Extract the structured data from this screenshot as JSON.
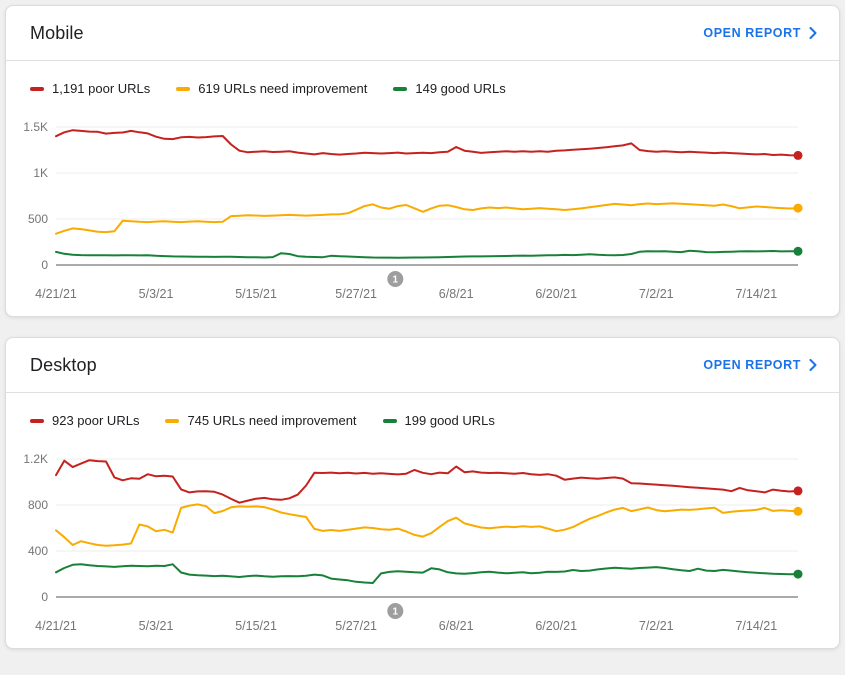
{
  "accent_color": "#1a73e8",
  "status_colors": {
    "poor": "#c5221f",
    "needs_improvement": "#f9ab00",
    "good": "#188038"
  },
  "cards": [
    {
      "id": "mobile",
      "title": "Mobile",
      "open_report_label": "OPEN REPORT",
      "legend": [
        {
          "label": "1,191 poor URLs",
          "color": "#c5221f"
        },
        {
          "label": "619 URLs need improvement",
          "color": "#f9ab00"
        },
        {
          "label": "149 good URLs",
          "color": "#188038"
        }
      ],
      "chart_data": {
        "type": "line",
        "start_date": "4/21/21",
        "y_max": 1500,
        "y_ticks": [
          {
            "value": 0,
            "label": "0"
          },
          {
            "value": 500,
            "label": "500"
          },
          {
            "value": 1000,
            "label": "1K"
          },
          {
            "value": 1500,
            "label": "1.5K"
          }
        ],
        "x_ticks": [
          {
            "index": 0,
            "label": "4/21/21"
          },
          {
            "index": 12,
            "label": "5/3/21"
          },
          {
            "index": 24,
            "label": "5/15/21"
          },
          {
            "index": 36,
            "label": "5/27/21"
          },
          {
            "index": 48,
            "label": "6/8/21"
          },
          {
            "index": 60,
            "label": "6/20/21"
          },
          {
            "index": 72,
            "label": "7/2/21"
          },
          {
            "index": 84,
            "label": "7/14/21"
          }
        ],
        "annotation": {
          "label": "1",
          "day_index": 40.7
        },
        "series": [
          {
            "name": "poor URLs",
            "color": "#c5221f",
            "current": 1191,
            "values": [
              1400,
              1442,
              1465,
              1458,
              1450,
              1448,
              1428,
              1436,
              1440,
              1458,
              1442,
              1430,
              1395,
              1372,
              1368,
              1388,
              1392,
              1386,
              1390,
              1398,
              1402,
              1310,
              1242,
              1225,
              1232,
              1236,
              1228,
              1232,
              1236,
              1222,
              1212,
              1202,
              1216,
              1206,
              1200,
              1206,
              1212,
              1220,
              1216,
              1212,
              1216,
              1222,
              1212,
              1216,
              1220,
              1216,
              1226,
              1232,
              1283,
              1242,
              1232,
              1218,
              1226,
              1232,
              1236,
              1232,
              1236,
              1232,
              1236,
              1232,
              1242,
              1246,
              1252,
              1258,
              1264,
              1272,
              1280,
              1290,
              1300,
              1322,
              1250,
              1238,
              1232,
              1236,
              1232,
              1226,
              1232,
              1226,
              1222,
              1216,
              1222,
              1216,
              1212,
              1206,
              1202,
              1206,
              1196,
              1200,
              1194,
              1191
            ]
          },
          {
            "name": "URLs need improvement",
            "color": "#f9ab00",
            "current": 619,
            "values": [
              340,
              372,
              398,
              390,
              376,
              362,
              358,
              366,
              482,
              476,
              470,
              466,
              472,
              476,
              470,
              466,
              472,
              476,
              470,
              466,
              470,
              532,
              536,
              540,
              538,
              534,
              537,
              541,
              545,
              541,
              537,
              541,
              545,
              550,
              552,
              562,
              600,
              640,
              660,
              625,
              612,
              640,
              652,
              616,
              578,
              615,
              645,
              650,
              630,
              605,
              598,
              615,
              625,
              618,
              625,
              615,
              605,
              612,
              618,
              612,
              605,
              598,
              605,
              615,
              628,
              640,
              652,
              664,
              658,
              650,
              662,
              668,
              662,
              666,
              670,
              665,
              660,
              655,
              650,
              645,
              658,
              640,
              616,
              626,
              636,
              630,
              624,
              618,
              614,
              619
            ]
          },
          {
            "name": "good URLs",
            "color": "#188038",
            "current": 149,
            "values": [
              142,
              122,
              112,
              108,
              106,
              105,
              106,
              104,
              105,
              106,
              104,
              105,
              100,
              97,
              94,
              92,
              91,
              90,
              89,
              88,
              90,
              89,
              87,
              85,
              84,
              82,
              86,
              128,
              120,
              96,
              90,
              87,
              85,
              100,
              96,
              92,
              88,
              85,
              82,
              80,
              80,
              79,
              80,
              81,
              82,
              83,
              85,
              87,
              90,
              92,
              94,
              93,
              95,
              97,
              98,
              100,
              102,
              101,
              103,
              105,
              107,
              110,
              108,
              112,
              117,
              111,
              108,
              106,
              109,
              120,
              143,
              150,
              148,
              150,
              145,
              140,
              154,
              149,
              140,
              138,
              142,
              145,
              148,
              150,
              148,
              150,
              152,
              148,
              150,
              149
            ]
          }
        ]
      }
    },
    {
      "id": "desktop",
      "title": "Desktop",
      "open_report_label": "OPEN REPORT",
      "legend": [
        {
          "label": "923 poor URLs",
          "color": "#c5221f"
        },
        {
          "label": "745 URLs need improvement",
          "color": "#f9ab00"
        },
        {
          "label": "199 good URLs",
          "color": "#188038"
        }
      ],
      "chart_data": {
        "type": "line",
        "start_date": "4/21/21",
        "y_max": 1200,
        "y_ticks": [
          {
            "value": 0,
            "label": "0"
          },
          {
            "value": 400,
            "label": "400"
          },
          {
            "value": 800,
            "label": "800"
          },
          {
            "value": 1200,
            "label": "1.2K"
          }
        ],
        "x_ticks": [
          {
            "index": 0,
            "label": "4/21/21"
          },
          {
            "index": 12,
            "label": "5/3/21"
          },
          {
            "index": 24,
            "label": "5/15/21"
          },
          {
            "index": 36,
            "label": "5/27/21"
          },
          {
            "index": 48,
            "label": "6/8/21"
          },
          {
            "index": 60,
            "label": "6/20/21"
          },
          {
            "index": 72,
            "label": "7/2/21"
          },
          {
            "index": 84,
            "label": "7/14/21"
          }
        ],
        "annotation": {
          "label": "1",
          "day_index": 40.7
        },
        "series": [
          {
            "name": "poor URLs",
            "color": "#c5221f",
            "current": 923,
            "values": [
              1060,
              1185,
              1130,
              1160,
              1190,
              1182,
              1178,
              1040,
              1015,
              1032,
              1028,
              1068,
              1050,
              1055,
              1048,
              936,
              910,
              918,
              920,
              915,
              890,
              853,
              820,
              838,
              855,
              862,
              850,
              845,
              858,
              890,
              970,
              1080,
              1078,
              1082,
              1076,
              1080,
              1074,
              1079,
              1072,
              1076,
              1070,
              1066,
              1072,
              1105,
              1080,
              1068,
              1082,
              1076,
              1135,
              1085,
              1092,
              1082,
              1078,
              1080,
              1076,
              1072,
              1078,
              1068,
              1062,
              1068,
              1055,
              1020,
              1030,
              1038,
              1032,
              1028,
              1035,
              1040,
              1030,
              990,
              987,
              982,
              977,
              972,
              967,
              961,
              955,
              950,
              944,
              939,
              934,
              920,
              949,
              928,
              919,
              910,
              934,
              924,
              917,
              923
            ]
          },
          {
            "name": "URLs need improvement",
            "color": "#f9ab00",
            "current": 745,
            "values": [
              580,
              520,
              452,
              485,
              468,
              452,
              445,
              450,
              456,
              465,
              630,
              614,
              572,
              584,
              560,
              775,
              795,
              805,
              790,
              730,
              748,
              780,
              788,
              784,
              788,
              782,
              760,
              735,
              720,
              708,
              696,
              592,
              575,
              583,
              575,
              585,
              595,
              605,
              600,
              590,
              585,
              595,
              570,
              540,
              525,
              555,
              610,
              660,
              690,
              640,
              622,
              604,
              598,
              605,
              612,
              608,
              615,
              610,
              614,
              595,
              572,
              585,
              608,
              645,
              680,
              705,
              735,
              760,
              775,
              747,
              762,
              778,
              756,
              745,
              752,
              760,
              757,
              763,
              770,
              776,
              731,
              742,
              748,
              752,
              757,
              775,
              749,
              754,
              749,
              745
            ]
          },
          {
            "name": "good URLs",
            "color": "#188038",
            "current": 199,
            "values": [
              215,
              252,
              280,
              284,
              276,
              270,
              266,
              262,
              268,
              272,
              270,
              268,
              272,
              270,
              284,
              213,
              195,
              190,
              186,
              182,
              185,
              179,
              174,
              182,
              186,
              180,
              176,
              180,
              182,
              180,
              184,
              195,
              188,
              160,
              152,
              145,
              132,
              126,
              122,
              205,
              218,
              224,
              220,
              215,
              212,
              250,
              240,
              215,
              205,
              202,
              208,
              215,
              220,
              212,
              206,
              210,
              215,
              206,
              210,
              220,
              218,
              222,
              235,
              226,
              230,
              240,
              248,
              255,
              250,
              246,
              252,
              256,
              260,
              252,
              242,
              232,
              226,
              246,
              230,
              226,
              236,
              230,
              222,
              216,
              210,
              206,
              202,
              200,
              198,
              199
            ]
          }
        ]
      }
    }
  ]
}
